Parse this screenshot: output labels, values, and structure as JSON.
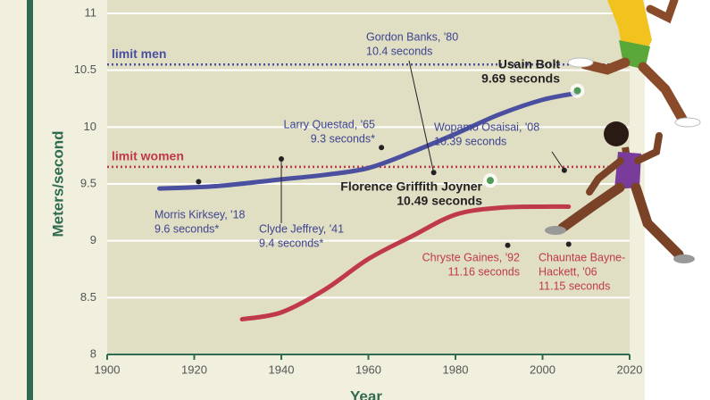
{
  "chart_data": {
    "type": "line",
    "y_label": "Meters/second",
    "x_label": "Year",
    "xlim": [
      1900,
      2020
    ],
    "xticks": [
      1900,
      1920,
      1940,
      1960,
      1980,
      2000,
      2020
    ],
    "ylim": [
      8,
      11
    ],
    "yticks": [
      8,
      8.5,
      9,
      9.5,
      10,
      10.5,
      11
    ],
    "grid": true,
    "series": [
      {
        "color": "#4a4fa0",
        "x": [
          1912,
          1925,
          1940,
          1950,
          1960,
          1970,
          1980,
          1990,
          2000,
          2008
        ],
        "values": [
          9.46,
          9.48,
          9.54,
          9.58,
          9.64,
          9.78,
          9.94,
          10.11,
          10.24,
          10.3
        ]
      },
      {
        "color": "#c0394a",
        "x": [
          1931,
          1940,
          1950,
          1960,
          1970,
          1980,
          1990,
          2000,
          2006
        ],
        "values": [
          8.31,
          8.37,
          8.57,
          8.84,
          9.04,
          9.23,
          9.29,
          9.3,
          9.3
        ]
      }
    ],
    "limits": [
      {
        "label": "limit men",
        "value": 10.55,
        "color": "#4a4fa0"
      },
      {
        "label": "limit women",
        "value": 9.65,
        "color": "#c0394a"
      }
    ],
    "highlights": [
      {
        "lines": [
          "Usain Bolt",
          "9.69 seconds"
        ],
        "x": 2008,
        "y": 10.32
      },
      {
        "lines": [
          "Florence Griffith Joyner",
          "10.49 seconds"
        ],
        "x": 1988,
        "y": 9.53
      }
    ],
    "annotations": [
      {
        "lines": [
          "Morris Kirksey, '18",
          "9.6 seconds*"
        ],
        "x": 1921,
        "y": 9.52,
        "color": "#3d4490"
      },
      {
        "lines": [
          "Clyde Jeffrey, '41",
          "9.4 seconds*"
        ],
        "x": 1940,
        "y": 9.72,
        "color": "#3d4490"
      },
      {
        "lines": [
          "Larry Questad, '65",
          "9.3 seconds*"
        ],
        "x": 1963,
        "y": 9.82,
        "color": "#3d4490"
      },
      {
        "lines": [
          "Gordon Banks, '80",
          "10.4 seconds"
        ],
        "x": 1975,
        "y": 9.6,
        "color": "#3d4490"
      },
      {
        "lines": [
          "Wopamo Osaisai, '08",
          "10.39 seconds"
        ],
        "x": 2005,
        "y": 9.62,
        "color": "#3d4490"
      },
      {
        "lines": [
          "Chryste Gaines, '92",
          "11.16 seconds"
        ],
        "x": 1992,
        "y": 8.96,
        "color": "#c0394a"
      },
      {
        "lines": [
          "Chauntae Bayne-",
          "Hackett, '06",
          "11.15 seconds"
        ],
        "x": 2006,
        "y": 8.97,
        "color": "#c0394a"
      }
    ]
  }
}
